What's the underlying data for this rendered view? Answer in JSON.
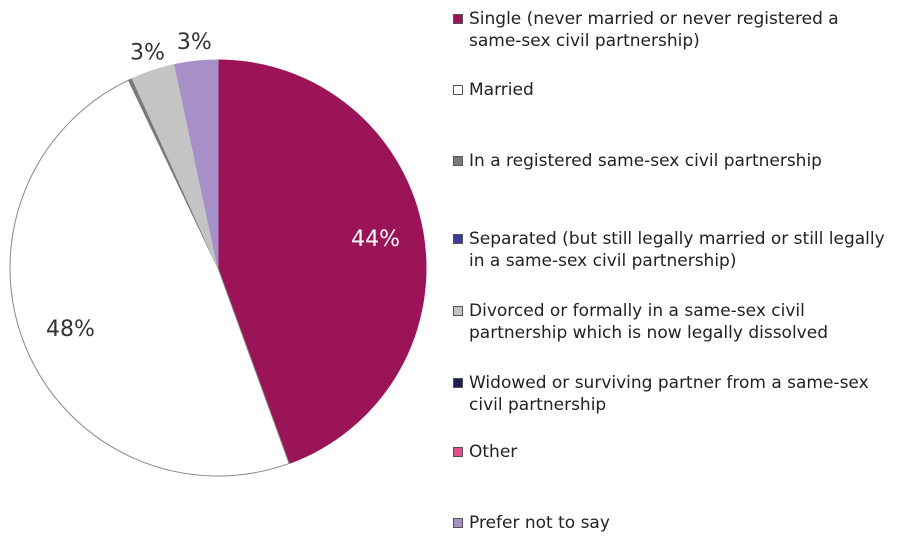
{
  "chart_data": {
    "type": "pie",
    "categories": [
      "Single (never married or never registered a same-sex civil partnership)",
      "Married",
      "In a registered same-sex civil partnership",
      "Separated (but still legally married or still legally in a same-sex civil partnership)",
      "Divorced or formally in a same-sex civil partnership which is now legally dissolved",
      "Widowed or surviving partner from a same-sex civil partnership",
      "Other",
      "Prefer not to say"
    ],
    "values": [
      44,
      48,
      0.3,
      0,
      3.4,
      0,
      0,
      3.3
    ],
    "value_labels": [
      "44%",
      "48%",
      null,
      null,
      "3%",
      null,
      null,
      "3%"
    ],
    "colors": [
      "#9b1458",
      "#ffffff",
      "#7a7a7a",
      "#3a3a9a",
      "#c4c4c4",
      "#1e1e50",
      "#e0508a",
      "#a78fc8"
    ],
    "legend": "right"
  }
}
